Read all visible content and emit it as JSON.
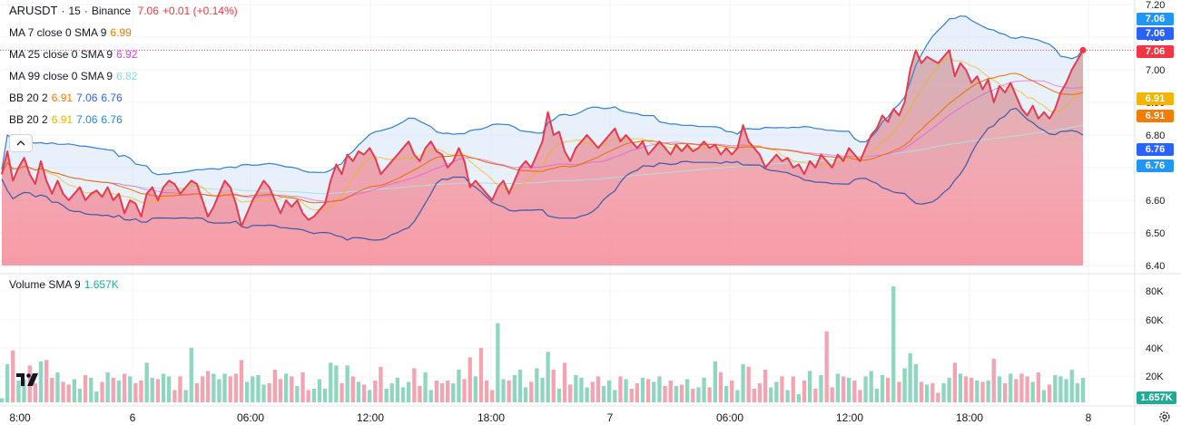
{
  "header": {
    "symbol": "ARUSDT",
    "interval": "15",
    "exchange": "Binance",
    "sep1": "·",
    "sep2": "·",
    "price": "7.06",
    "change": "+0.01 (+0.14%)"
  },
  "indicators": [
    {
      "label": "MA 7 close 0 SMA 9",
      "values": [
        "6.99"
      ],
      "colors": [
        "#f57c00"
      ]
    },
    {
      "label": "MA 25 close 0 SMA 9",
      "values": [
        "6.92"
      ],
      "colors": [
        "#e040fb"
      ]
    },
    {
      "label": "MA 99 close 0 SMA 9",
      "values": [
        "6.82"
      ],
      "colors": [
        "#80deea"
      ]
    },
    {
      "label": "BB 20 2",
      "values": [
        "6.91",
        "7.06",
        "6.76"
      ],
      "colors": [
        "#f57c00",
        "#2962ff",
        "#2962ff"
      ]
    },
    {
      "label": "BB 20 2",
      "values": [
        "6.91",
        "7.06",
        "6.76"
      ],
      "colors": [
        "#f5b400",
        "#1e88e5",
        "#1e88e5"
      ]
    }
  ],
  "volume_legend": {
    "label": "Volume SMA 9",
    "value": "1.657K"
  },
  "price_axis": {
    "ticks": [
      "7.20",
      "7.10",
      "7.00",
      "6.90",
      "6.80",
      "6.70",
      "6.60",
      "6.50",
      "6.40"
    ]
  },
  "volume_axis": {
    "ticks": [
      "80K",
      "60K",
      "40K",
      "20K"
    ]
  },
  "time_axis": {
    "ticks": [
      "8:00",
      "6",
      "06:00",
      "12:00",
      "18:00",
      "7",
      "06:00",
      "12:00",
      "18:00",
      "8"
    ]
  },
  "price_tags": [
    {
      "text": "7.06",
      "color": "#2196f3"
    },
    {
      "text": "7.06",
      "color": "#2962ff"
    },
    {
      "text": "7.06",
      "color": "#f23645"
    },
    {
      "text": "6.91",
      "color": "#f5b400"
    },
    {
      "text": "6.91",
      "color": "#f57c00"
    },
    {
      "text": "6.76",
      "color": "#2962ff"
    },
    {
      "text": "6.76",
      "color": "#2196f3"
    }
  ],
  "volume_tag": {
    "text": "1.657K",
    "color": "#22ab94"
  },
  "chart_data": {
    "type": "area",
    "ylim": [
      6.4,
      7.2
    ],
    "close": [
      6.68,
      6.75,
      6.66,
      6.7,
      6.73,
      6.68,
      6.65,
      6.72,
      6.66,
      6.62,
      6.66,
      6.62,
      6.6,
      6.62,
      6.64,
      6.6,
      6.62,
      6.63,
      6.61,
      6.64,
      6.6,
      6.62,
      6.56,
      6.6,
      6.59,
      6.55,
      6.62,
      6.64,
      6.6,
      6.64,
      6.66,
      6.65,
      6.62,
      6.64,
      6.66,
      6.65,
      6.6,
      6.55,
      6.58,
      6.62,
      6.66,
      6.64,
      6.59,
      6.52,
      6.56,
      6.6,
      6.63,
      6.66,
      6.64,
      6.6,
      6.56,
      6.6,
      6.58,
      6.6,
      6.56,
      6.54,
      6.55,
      6.57,
      6.59,
      6.66,
      6.71,
      6.68,
      6.74,
      6.72,
      6.75,
      6.74,
      6.76,
      6.73,
      6.68,
      6.7,
      6.72,
      6.74,
      6.76,
      6.78,
      6.74,
      6.72,
      6.76,
      6.78,
      6.75,
      6.74,
      6.7,
      6.72,
      6.76,
      6.72,
      6.64,
      6.66,
      6.64,
      6.62,
      6.6,
      6.64,
      6.66,
      6.62,
      6.66,
      6.7,
      6.72,
      6.7,
      6.74,
      6.78,
      6.87,
      6.8,
      6.81,
      6.75,
      6.72,
      6.76,
      6.78,
      6.8,
      6.78,
      6.76,
      6.78,
      6.8,
      6.82,
      6.78,
      6.8,
      6.78,
      6.76,
      6.78,
      6.74,
      6.76,
      6.78,
      6.76,
      6.74,
      6.77,
      6.75,
      6.77,
      6.75,
      6.76,
      6.78,
      6.76,
      6.77,
      6.74,
      6.76,
      6.74,
      6.76,
      6.83,
      6.78,
      6.76,
      6.74,
      6.7,
      6.72,
      6.74,
      6.72,
      6.73,
      6.7,
      6.71,
      6.68,
      6.72,
      6.7,
      6.74,
      6.72,
      6.7,
      6.74,
      6.72,
      6.76,
      6.74,
      6.72,
      6.76,
      6.8,
      6.82,
      6.86,
      6.84,
      6.88,
      6.86,
      6.9,
      7.0,
      7.06,
      7.02,
      7.04,
      7.03,
      7.02,
      7.04,
      7.06,
      6.98,
      7.02,
      7.0,
      6.96,
      6.98,
      6.94,
      6.97,
      6.9,
      6.95,
      6.93,
      6.96,
      6.92,
      6.88,
      6.86,
      6.89,
      6.85,
      6.87,
      6.85,
      6.88,
      6.93,
      6.96,
      7.0,
      7.03,
      7.06
    ]
  }
}
